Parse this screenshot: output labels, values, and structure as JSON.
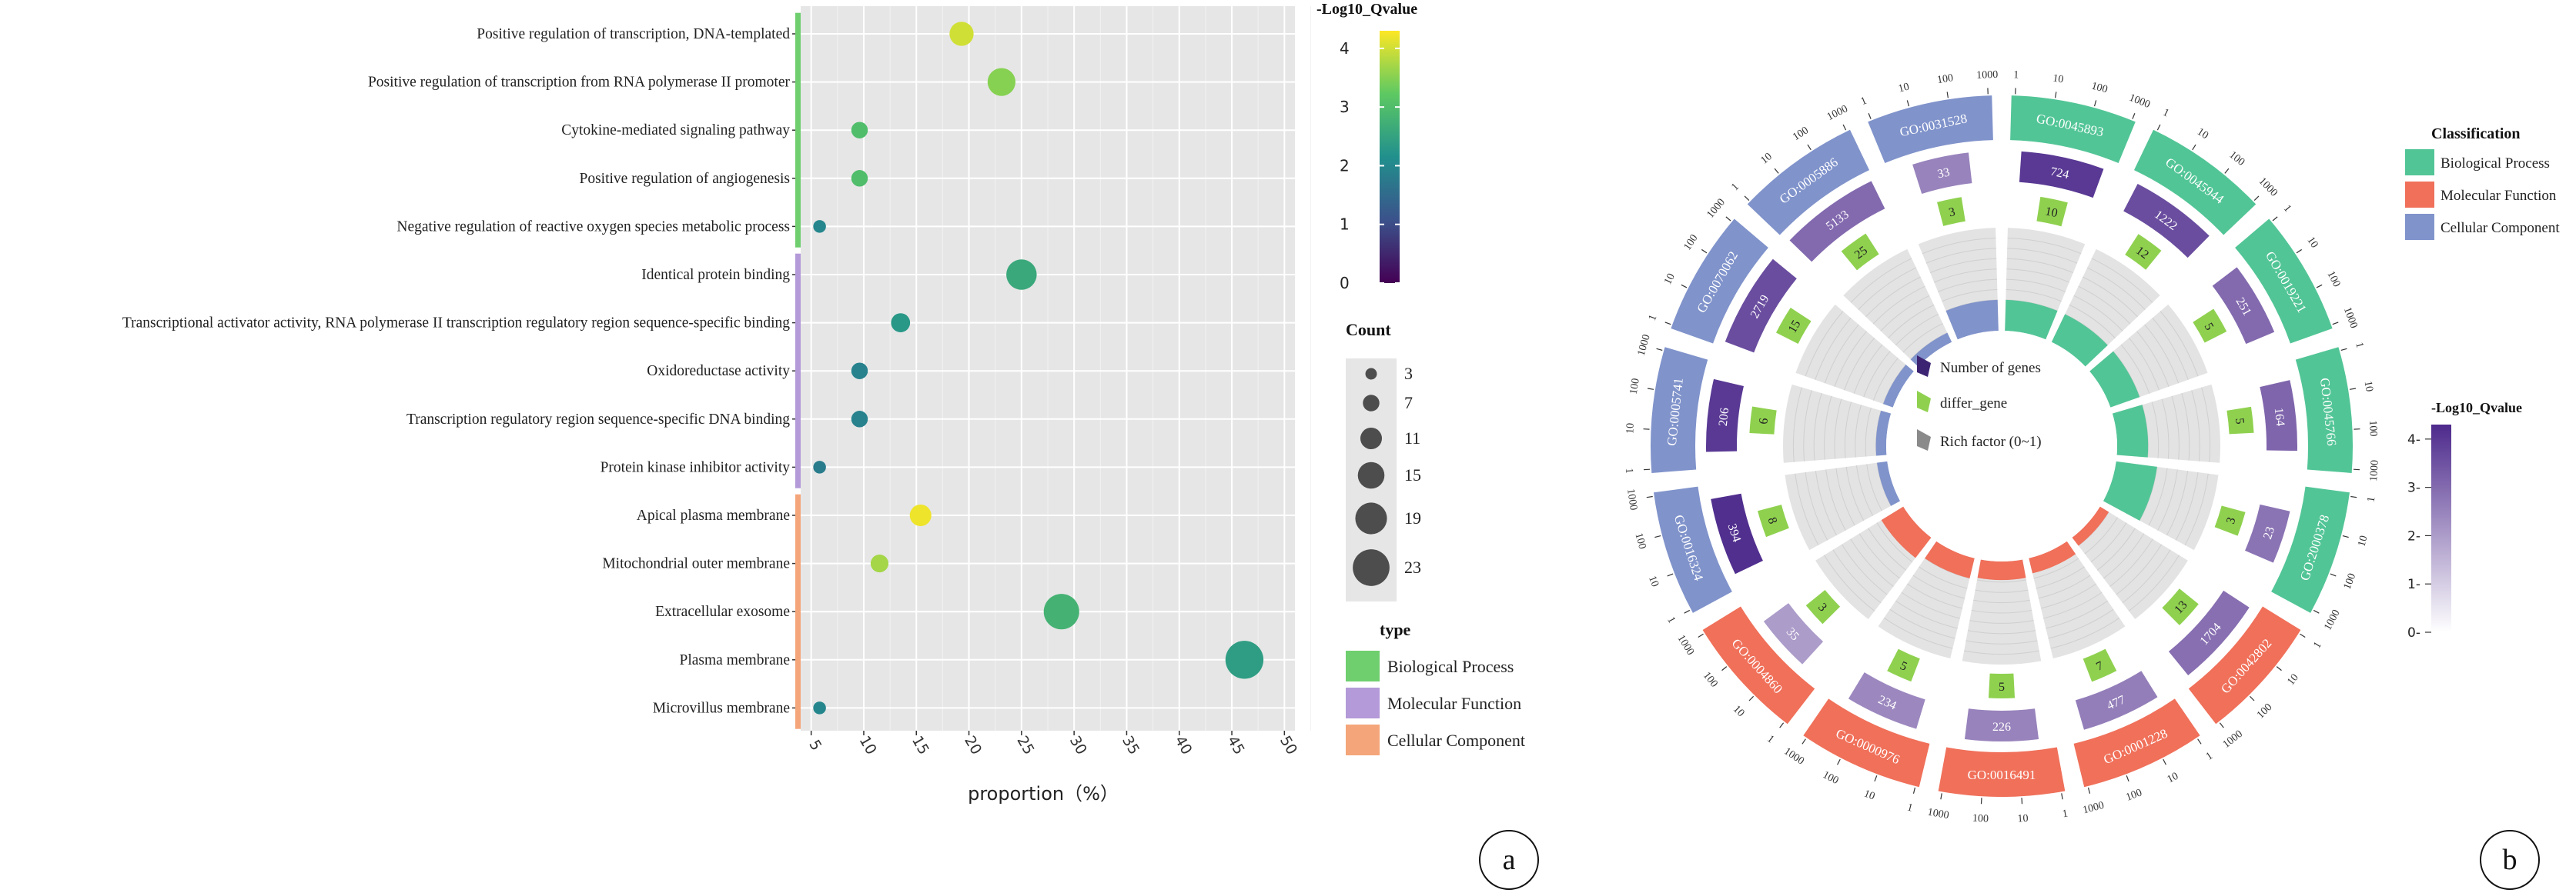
{
  "panel_labels": {
    "a": "a",
    "b": "b"
  },
  "chart_data": [
    {
      "type": "scatter",
      "panel": "a",
      "xlabel": "proportion（%）",
      "ylabel": "",
      "xlim": [
        4,
        51
      ],
      "xticks": [
        5,
        10,
        15,
        20,
        25,
        30,
        35,
        40,
        45,
        50
      ],
      "grid": true,
      "colorbar": {
        "title": "-Log10_Qvalue",
        "ticks": [
          0,
          1,
          2,
          3,
          4
        ],
        "range": [
          0,
          4.3
        ],
        "palette": [
          "#440154",
          "#3b528b",
          "#21908d",
          "#5dc962",
          "#fde725"
        ]
      },
      "size_legend": {
        "title": "Count",
        "values": [
          3,
          7,
          11,
          15,
          19,
          23
        ]
      },
      "type_legend": {
        "title": "type",
        "items": [
          {
            "label": "Biological Process",
            "color": "#6fcf6f"
          },
          {
            "label": "Molecular Function",
            "color": "#b49ad8"
          },
          {
            "label": "Cellular Component",
            "color": "#f4a67a"
          }
        ]
      },
      "terms": [
        {
          "label": "Positive regulation of transcription, DNA-templated",
          "type": "Biological Process",
          "x": 19.3,
          "count": 13,
          "qvalue": 4.0
        },
        {
          "label": "Positive regulation of transcription from RNA polymerase II promoter",
          "type": "Biological Process",
          "x": 23.1,
          "count": 16,
          "qvalue": 3.5
        },
        {
          "label": "Cytokine-mediated signaling pathway",
          "type": "Biological Process",
          "x": 9.6,
          "count": 7,
          "qvalue": 3.0
        },
        {
          "label": "Positive regulation of angiogenesis",
          "type": "Biological Process",
          "x": 9.6,
          "count": 7,
          "qvalue": 3.0
        },
        {
          "label": "Negative regulation of reactive oxygen species metabolic process",
          "type": "Biological Process",
          "x": 5.8,
          "count": 4,
          "qvalue": 2.0
        },
        {
          "label": "Identical protein binding",
          "type": "Molecular Function",
          "x": 25.0,
          "count": 18,
          "qvalue": 2.6
        },
        {
          "label": "Transcriptional activator activity, RNA polymerase II transcription regulatory region sequence-specific binding",
          "type": "Molecular Function",
          "x": 13.5,
          "count": 9,
          "qvalue": 2.3
        },
        {
          "label": "Oxidoreductase activity",
          "type": "Molecular Function",
          "x": 9.6,
          "count": 7,
          "qvalue": 1.9
        },
        {
          "label": "Transcription regulatory region sequence-specific DNA binding",
          "type": "Molecular Function",
          "x": 9.6,
          "count": 7,
          "qvalue": 1.9
        },
        {
          "label": "Protein kinase inhibitor activity",
          "type": "Molecular Function",
          "x": 5.8,
          "count": 4,
          "qvalue": 1.8
        },
        {
          "label": "Apical plasma membrane",
          "type": "Cellular Component",
          "x": 15.4,
          "count": 11,
          "qvalue": 4.2
        },
        {
          "label": "Mitochondrial outer membrane",
          "type": "Cellular Component",
          "x": 11.5,
          "count": 8,
          "qvalue": 3.7
        },
        {
          "label": "Extracellular exosome",
          "type": "Cellular Component",
          "x": 28.8,
          "count": 22,
          "qvalue": 2.8
        },
        {
          "label": "Plasma membrane",
          "type": "Cellular Component",
          "x": 46.2,
          "count": 24,
          "qvalue": 2.4
        },
        {
          "label": "Microvillus membrane",
          "type": "Cellular Component",
          "x": 5.8,
          "count": 4,
          "qvalue": 2.0
        }
      ]
    },
    {
      "type": "circos",
      "panel": "b",
      "ring_scale_labels": [
        "1",
        "10",
        "100",
        "1000"
      ],
      "classification_legend": {
        "title": "Classification",
        "items": [
          {
            "label": "Biological Process",
            "color": "#52c596"
          },
          {
            "label": "Molecular Function",
            "color": "#f0705a"
          },
          {
            "label": "Cellular Component",
            "color": "#8093cb"
          }
        ]
      },
      "qvalue_legend": {
        "title": "-Log10_Qvalue",
        "ticks": [
          0,
          1,
          2,
          3,
          4
        ],
        "range": [
          0,
          4.3
        ],
        "palette": [
          "#ffffff",
          "#4d2a8c"
        ]
      },
      "inner_legend": [
        "Number of genes",
        "differ_gene",
        "Rich factor (0~1)"
      ],
      "terms": [
        {
          "id": "GO:0045893",
          "class": "Biological Process",
          "genes": 724,
          "differ": 10,
          "rich": 0.3,
          "qvalue": 4.0
        },
        {
          "id": "GO:0045944",
          "class": "Biological Process",
          "genes": 1222,
          "differ": 12,
          "rich": 0.3,
          "qvalue": 3.6
        },
        {
          "id": "GO:0019221",
          "class": "Biological Process",
          "genes": 251,
          "differ": 5,
          "rich": 0.3,
          "qvalue": 3.0
        },
        {
          "id": "GO:0045766",
          "class": "Biological Process",
          "genes": 164,
          "differ": 5,
          "rich": 0.3,
          "qvalue": 3.1
        },
        {
          "id": "GO:2000378",
          "class": "Biological Process",
          "genes": 23,
          "differ": 3,
          "rich": 0.4,
          "qvalue": 2.8
        },
        {
          "id": "GO:0042802",
          "class": "Molecular Function",
          "genes": 1704,
          "differ": 13,
          "rich": 0.1,
          "qvalue": 2.9
        },
        {
          "id": "GO:0001228",
          "class": "Molecular Function",
          "genes": 477,
          "differ": 7,
          "rich": 0.15,
          "qvalue": 2.6
        },
        {
          "id": "GO:0016491",
          "class": "Molecular Function",
          "genes": 226,
          "differ": 5,
          "rich": 0.18,
          "qvalue": 2.5
        },
        {
          "id": "GO:0000976",
          "class": "Molecular Function",
          "genes": 234,
          "differ": 5,
          "rich": 0.2,
          "qvalue": 2.4
        },
        {
          "id": "GO:0004860",
          "class": "Molecular Function",
          "genes": 35,
          "differ": 3,
          "rich": 0.25,
          "qvalue": 2.0
        },
        {
          "id": "GO:0016324",
          "class": "Cellular Component",
          "genes": 394,
          "differ": 8,
          "rich": 0.1,
          "qvalue": 4.2
        },
        {
          "id": "GO:0005741",
          "class": "Cellular Component",
          "genes": 206,
          "differ": 6,
          "rich": 0.1,
          "qvalue": 4.0
        },
        {
          "id": "GO:0070062",
          "class": "Cellular Component",
          "genes": 2719,
          "differ": 15,
          "rich": 0.1,
          "qvalue": 3.6
        },
        {
          "id": "GO:0005886",
          "class": "Cellular Component",
          "genes": 5133,
          "differ": 25,
          "rich": 0.1,
          "qvalue": 3.0
        },
        {
          "id": "GO:0031528",
          "class": "Cellular Component",
          "genes": 33,
          "differ": 3,
          "rich": 0.3,
          "qvalue": 2.5
        }
      ]
    }
  ]
}
